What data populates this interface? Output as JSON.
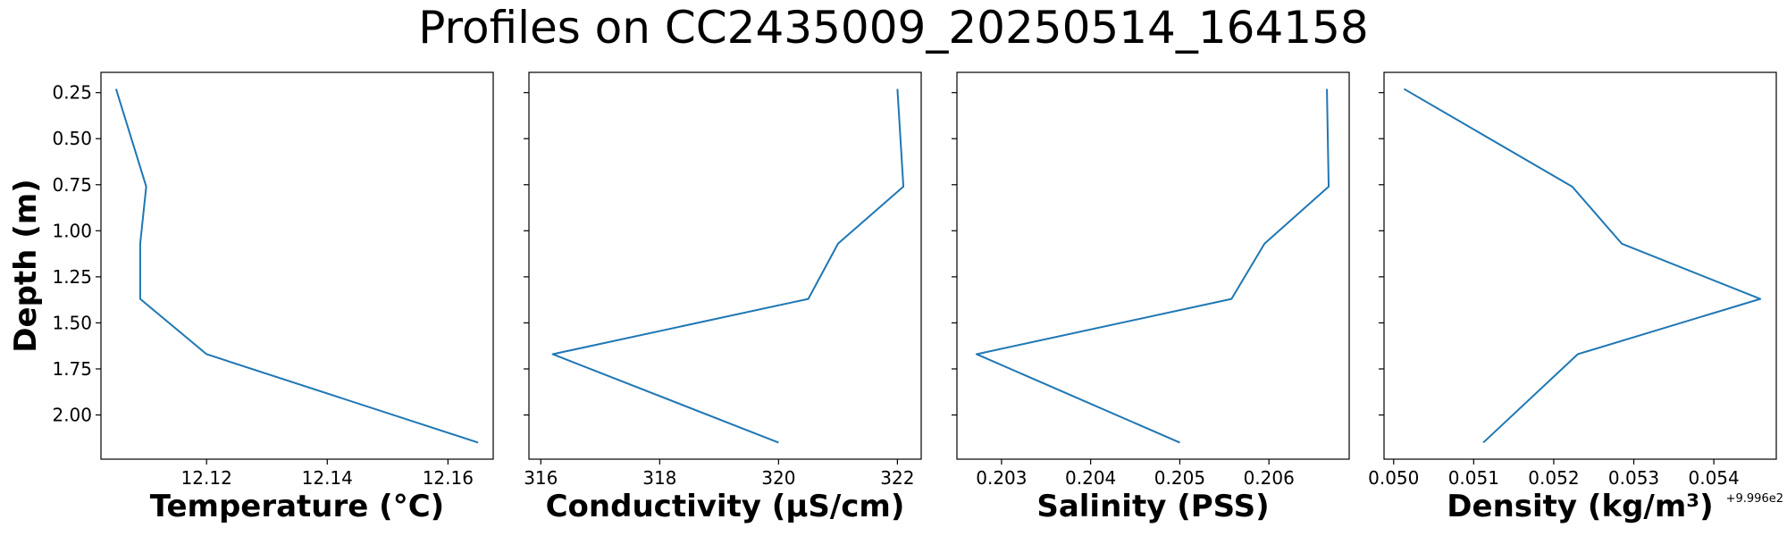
{
  "figure": {
    "title": "Profiles on CC2435009_20250514_164158"
  },
  "chart_data": [
    {
      "type": "line",
      "xlabel": "Temperature (°C)",
      "ylabel": "Depth (m)",
      "xlim": [
        12.1025,
        12.1675
      ],
      "ylim": [
        2.24,
        0.14
      ],
      "y_inverted": true,
      "xticks": [
        12.12,
        12.14,
        12.16
      ],
      "xtick_labels": [
        "12.12",
        "12.14",
        "12.16"
      ],
      "yticks": [
        0.25,
        0.5,
        0.75,
        1.0,
        1.25,
        1.5,
        1.75,
        2.0
      ],
      "ytick_labels": [
        "0.25",
        "0.50",
        "0.75",
        "1.00",
        "1.25",
        "1.50",
        "1.75",
        "2.00"
      ],
      "series": [
        {
          "x": [
            12.105,
            12.11,
            12.109,
            12.109,
            12.12,
            12.165
          ],
          "y": [
            0.23,
            0.76,
            1.07,
            1.37,
            1.67,
            2.15
          ]
        }
      ]
    },
    {
      "type": "line",
      "xlabel": "Conductivity (µS/cm)",
      "xlim": [
        315.8,
        322.4
      ],
      "ylim": [
        2.24,
        0.14
      ],
      "y_inverted": true,
      "xticks": [
        316,
        318,
        320,
        322
      ],
      "xtick_labels": [
        "316",
        "318",
        "320",
        "322"
      ],
      "series": [
        {
          "x": [
            322.0,
            322.1,
            321.0,
            320.5,
            316.2,
            320.0
          ],
          "y": [
            0.23,
            0.76,
            1.07,
            1.37,
            1.67,
            2.15
          ]
        }
      ]
    },
    {
      "type": "line",
      "xlabel": "Salinity (PSS)",
      "xlim": [
        0.2025,
        0.2069
      ],
      "ylim": [
        2.24,
        0.14
      ],
      "y_inverted": true,
      "xticks": [
        0.203,
        0.204,
        0.205,
        0.206
      ],
      "xtick_labels": [
        "0.203",
        "0.204",
        "0.205",
        "0.206"
      ],
      "series": [
        {
          "x": [
            0.20665,
            0.20667,
            0.20595,
            0.20558,
            0.20272,
            0.205
          ],
          "y": [
            0.23,
            0.76,
            1.07,
            1.37,
            1.67,
            2.15
          ]
        }
      ]
    },
    {
      "type": "line",
      "xlabel": "Density (kg/m³)",
      "x_offset_label": "+9.996e2",
      "xlim": [
        0.04988,
        0.05478
      ],
      "ylim": [
        2.24,
        0.14
      ],
      "y_inverted": true,
      "xticks": [
        0.05,
        0.051,
        0.052,
        0.053,
        0.054
      ],
      "xtick_labels": [
        "0.050",
        "0.051",
        "0.052",
        "0.053",
        "0.054"
      ],
      "series": [
        {
          "x": [
            0.05013,
            0.05223,
            0.05285,
            0.05458,
            0.0523,
            0.05112
          ],
          "y": [
            0.23,
            0.76,
            1.07,
            1.37,
            1.67,
            2.15
          ]
        }
      ]
    }
  ],
  "colors": {
    "line": "#1f77b4",
    "axes": "#000000"
  }
}
